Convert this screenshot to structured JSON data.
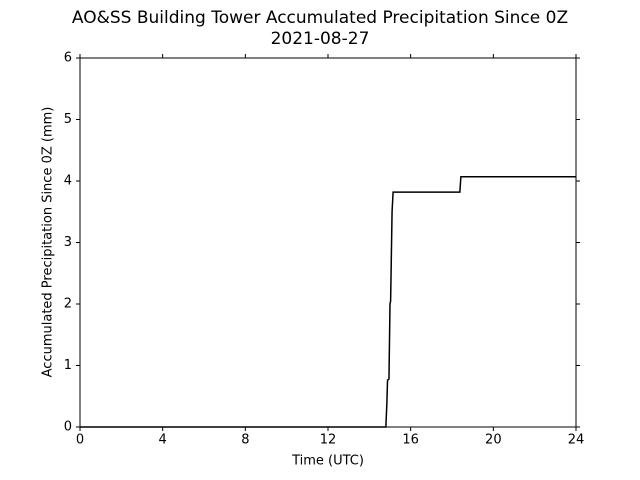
{
  "chart_data": {
    "type": "line",
    "title": "AO&SS Building Tower Accumulated Precipitation Since 0Z",
    "subtitle": "2021-08-27",
    "x_label": "Time (UTC)",
    "y_label": "Accumulated Precipitation Since 0Z (mm)",
    "x": [
      0,
      14.8,
      14.85,
      14.88,
      14.95,
      15.0,
      15.03,
      15.1,
      15.15,
      18.38,
      18.43,
      24
    ],
    "series": [
      {
        "name": "Accumulated Precipitation",
        "color": "#000000",
        "values": [
          0,
          0,
          0.4,
          0.76,
          0.78,
          2.0,
          2.05,
          3.5,
          3.82,
          3.82,
          4.07,
          4.07
        ]
      }
    ],
    "xlim": [
      0,
      24
    ],
    "xticks": [
      0,
      4,
      8,
      12,
      16,
      20,
      24
    ],
    "ylim": [
      0,
      6
    ],
    "yticks": [
      0,
      1,
      2,
      3,
      4,
      5,
      6
    ],
    "grid": false
  }
}
